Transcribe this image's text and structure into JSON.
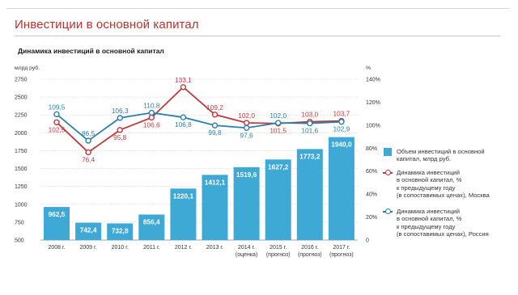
{
  "header": {
    "title": "Инвестиции в основной капитал",
    "subtitle": "Динамика инвестиций в основной капитал"
  },
  "colors": {
    "bar": "#3fa9d6",
    "moscow": "#c0393b",
    "russia": "#2b7fa6",
    "title": "#b8332d",
    "grid": "#cfcfcf"
  },
  "legend": {
    "bar": "Объем инвестиций в основной\nкапитал, млрд руб.",
    "moscow": "Динамика инвестиций\nв основной капитал, %\nк предыдущему году\n(в сопоставимых ценах), Москва",
    "russia": "Динамика инвестиций\nв основной капитал, %\nк предыдущему году\n(в сопоставимых ценах), Россия"
  },
  "chart_data": {
    "type": "bar",
    "categories": [
      [
        "2008 г."
      ],
      [
        "2009 г."
      ],
      [
        "2010 г."
      ],
      [
        "2011 г."
      ],
      [
        "2012 г."
      ],
      [
        "2013 г."
      ],
      [
        "2014 г.",
        "(оценка)"
      ],
      [
        "2015 г.",
        "(прогноз)"
      ],
      [
        "2016 г.",
        "(прогноз)"
      ],
      [
        "2017 г.",
        "(прогноз)"
      ]
    ],
    "bars": {
      "name": "Объем инвестиций в основной капитал, млрд руб.",
      "values": [
        962.5,
        742.4,
        732.8,
        856.4,
        1220.1,
        1412.1,
        1519.6,
        1627.2,
        1773.2,
        1940.0
      ],
      "labels": [
        "962,5",
        "742,4",
        "732,8",
        "856,4",
        "1220,1",
        "1412,1",
        "1519,6",
        "1627,2",
        "1773,2",
        "1940,0"
      ]
    },
    "series": [
      {
        "name": "Москва",
        "values": [
          102.5,
          76.4,
          95.8,
          106.6,
          133.1,
          109.2,
          102.0,
          101.5,
          103.0,
          103.7
        ],
        "labels": [
          "102,5",
          "76,4",
          "95,8",
          "106,6",
          "133,1",
          "109,2",
          "102,0",
          "101,5",
          "103,0",
          "103,7"
        ],
        "label_pos": [
          "below",
          "below",
          "below",
          "below",
          "above",
          "above",
          "above",
          "below",
          "above",
          "above"
        ]
      },
      {
        "name": "Россия",
        "values": [
          109.5,
          86.5,
          106.3,
          110.8,
          106.8,
          99.8,
          97.6,
          102.0,
          101.6,
          102.9
        ],
        "labels": [
          "109,5",
          "86,5",
          "106,3",
          "110,8",
          "106,8",
          "99,8",
          "97,6",
          "102,0",
          "101,6",
          "102,9"
        ],
        "label_pos": [
          "above",
          "above",
          "above",
          "above",
          "below",
          "below",
          "below",
          "above",
          "below",
          "below"
        ]
      }
    ],
    "y_left": {
      "unit": "млрд руб.",
      "ticks": [
        500,
        750,
        1000,
        1250,
        1500,
        1750,
        2000,
        2250,
        2500,
        2750
      ],
      "tick_labels": [
        "500",
        "750",
        "1000",
        "1250",
        "1500",
        "1750",
        "2000",
        "2250",
        "2500",
        "2750"
      ],
      "range": [
        500,
        2750
      ]
    },
    "y_right": {
      "unit": "%",
      "ticks": [
        0,
        20,
        40,
        60,
        80,
        100,
        120,
        140
      ],
      "tick_labels": [
        "0",
        "20%",
        "40%",
        "60%",
        "80%",
        "100%",
        "120%",
        "140%"
      ],
      "range": [
        0,
        140
      ]
    },
    "grid": true
  }
}
